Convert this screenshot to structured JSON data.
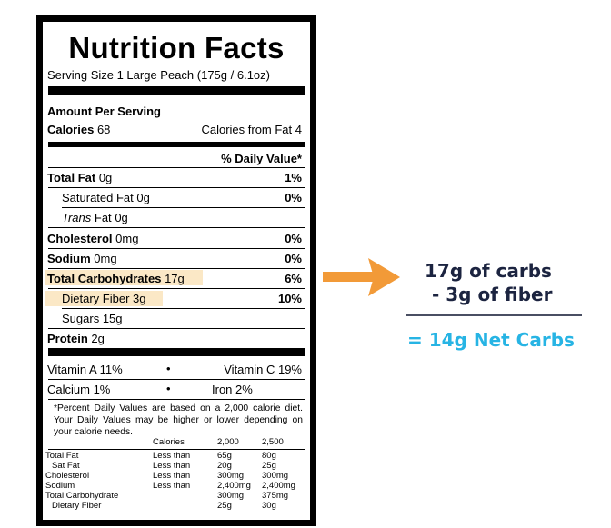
{
  "label": {
    "title": "Nutrition Facts",
    "serving_size": "Serving Size 1 Large Peach (175g / 6.1oz)",
    "amount_per_serving": "Amount Per Serving",
    "calories_label": "Calories",
    "calories_value": "68",
    "calories_from_fat": "Calories from Fat 4",
    "daily_value_header": "% Daily Value*",
    "nutrients": [
      {
        "name": "Total Fat",
        "amount": "0g",
        "dv": "1%"
      },
      {
        "name": "Saturated Fat",
        "amount": "0g",
        "dv": "0%"
      },
      {
        "name": "Trans",
        "name_rest": "Fat",
        "amount": "0g",
        "dv": ""
      },
      {
        "name": "Cholesterol",
        "amount": "0mg",
        "dv": "0%"
      },
      {
        "name": "Sodium",
        "amount": "0mg",
        "dv": "0%"
      },
      {
        "name": "Total Carbohydrates",
        "amount": "17g",
        "dv": "6%"
      },
      {
        "name": "Dietary Fiber",
        "amount": "3g",
        "dv": "10%"
      },
      {
        "name": "Sugars",
        "amount": "15g",
        "dv": ""
      },
      {
        "name": "Protein",
        "amount": "2g",
        "dv": ""
      }
    ],
    "vitamins": [
      {
        "left": "Vitamin A 11%",
        "bullet": "•",
        "right": "Vitamin C 19%"
      },
      {
        "left": "Calcium 1%",
        "bullet": "•",
        "right": "Iron 2%"
      }
    ],
    "footnote": "*Percent Daily Values are based on a 2,000 calorie diet. Your Daily Values may be higher or lower depending on your calorie needs.",
    "table": {
      "header": [
        "",
        "Calories",
        "2,000",
        "2,500"
      ],
      "rows": [
        [
          "Total Fat",
          "Less than",
          "65g",
          "80g"
        ],
        [
          "Sat Fat",
          "Less than",
          "20g",
          "25g"
        ],
        [
          "Cholesterol",
          "Less than",
          "300mg",
          "300mg"
        ],
        [
          "Sodium",
          "Less than",
          "2,400mg",
          "2,400mg"
        ],
        [
          "Total Carbohydrate",
          "",
          "300mg",
          "375mg"
        ],
        [
          "Dietary Fiber",
          "",
          "25g",
          "30g"
        ]
      ]
    }
  },
  "calculation": {
    "line1": "17g of carbs",
    "line2": "- 3g of fiber",
    "result": "= 14g Net Carbs",
    "arrow_color": "#f29a38",
    "text_color": "#1c2440",
    "result_color": "#27b4e4",
    "highlight_color": "#fbe8c6"
  }
}
